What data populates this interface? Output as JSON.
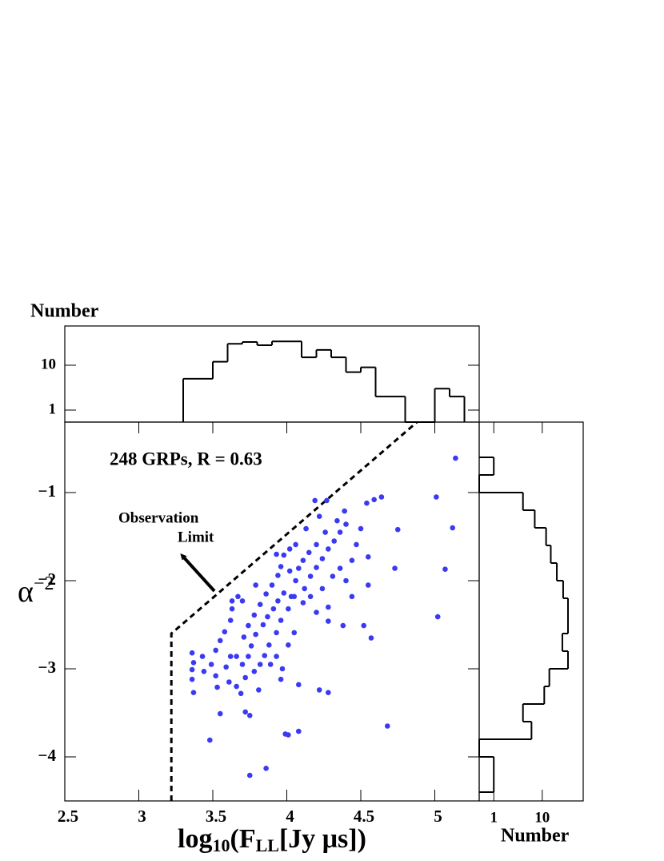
{
  "chart_data": [
    {
      "type": "scatter",
      "annotation": "248 GRPs, R = 0.63",
      "limit_label": [
        "Observation",
        "Limit"
      ],
      "xlabel": [
        {
          "text": "log"
        },
        {
          "text": "10",
          "sub": true
        },
        {
          "text": "(F"
        },
        {
          "text": "LL",
          "sub": true
        },
        {
          "text": "[Jy μs])"
        }
      ],
      "ylabel": [
        {
          "text": "α"
        },
        {
          "text": "−2",
          "sup": true
        }
      ],
      "color": "#3a3af2",
      "xlim": [
        2.5,
        5.3
      ],
      "ylim": [
        -4.5,
        -0.2
      ],
      "xticks": [
        2.5,
        3,
        3.5,
        4,
        4.5,
        5
      ],
      "yticks": [
        {
          "value": -1,
          "label": "−1"
        },
        {
          "value": -2,
          "label": "−2"
        },
        {
          "value": -3,
          "label": "−3"
        },
        {
          "value": -4,
          "label": "−4"
        }
      ],
      "limit_line": {
        "x": [
          3.22,
          3.22,
          4.88
        ],
        "y": [
          -4.5,
          -2.6,
          -0.2
        ]
      },
      "x": [
        5.14,
        5.01,
        5.12,
        5.07,
        5.02,
        4.75,
        4.73,
        4.64,
        4.59,
        4.54,
        4.68,
        4.57,
        4.52,
        4.38,
        4.28,
        4.22,
        4.28,
        4.08,
        4.01,
        3.99,
        3.86,
        3.75,
        3.72,
        3.75,
        3.55,
        3.48,
        3.96,
        4.08,
        3.81,
        3.69,
        3.66,
        3.53,
        3.37,
        3.36,
        3.36,
        3.37,
        3.36,
        3.43,
        3.44,
        3.49,
        3.52,
        3.55,
        3.58,
        3.62,
        3.63,
        3.63,
        3.67,
        3.62,
        3.66,
        3.7,
        3.74,
        3.76,
        3.71,
        3.74,
        3.78,
        3.82,
        3.86,
        3.9,
        3.94,
        3.96,
        3.98,
        4.02,
        4.06,
        4.05,
        4.01,
        3.96,
        3.93,
        3.88,
        3.85,
        3.93,
        3.89,
        3.82,
        3.79,
        3.84,
        3.87,
        3.91,
        3.94,
        3.98,
        4.12,
        4.16,
        4.2,
        4.24,
        4.28,
        4.32,
        4.36,
        4.4,
        4.39,
        4.34,
        4.26,
        4.2,
        4.15,
        4.11,
        4.08,
        4.13,
        4.22,
        4.27,
        4.19,
        4.11,
        4.16,
        4.24,
        4.31,
        4.36,
        4.4,
        4.44,
        4.47,
        4.5,
        4.55,
        4.55,
        4.44,
        3.7,
        3.79,
        3.93,
        4.02,
        4.06,
        4.03,
        4.2,
        4.28,
        3.59,
        3.52,
        3.78,
        3.97,
        4.01,
        4.05,
        3.61,
        3.72
      ],
      "y": [
        -0.61,
        -1.05,
        -1.4,
        -1.87,
        -2.41,
        -1.42,
        -1.86,
        -1.05,
        -1.08,
        -1.12,
        -3.65,
        -2.65,
        -2.51,
        -2.51,
        -3.27,
        -3.24,
        -2.46,
        -3.71,
        -3.75,
        -3.74,
        -4.13,
        -4.21,
        -3.49,
        -3.53,
        -3.51,
        -3.81,
        -3.12,
        -3.18,
        -3.24,
        -3.28,
        -3.2,
        -3.21,
        -3.27,
        -3.12,
        -3.01,
        -2.93,
        -2.82,
        -2.86,
        -3.03,
        -2.95,
        -2.79,
        -2.68,
        -2.58,
        -2.45,
        -2.32,
        -2.23,
        -2.18,
        -2.86,
        -2.86,
        -2.95,
        -2.86,
        -2.74,
        -2.64,
        -2.51,
        -2.39,
        -2.27,
        -2.15,
        -2.05,
        -1.94,
        -1.84,
        -1.71,
        -1.89,
        -2.0,
        -2.18,
        -2.32,
        -2.45,
        -2.59,
        -2.73,
        -2.85,
        -2.86,
        -2.95,
        -2.95,
        -2.61,
        -2.5,
        -2.41,
        -2.32,
        -2.23,
        -2.14,
        -2.09,
        -1.95,
        -1.85,
        -1.75,
        -1.64,
        -1.55,
        -1.45,
        -1.36,
        -1.21,
        -1.32,
        -1.45,
        -1.59,
        -1.68,
        -1.77,
        -1.86,
        -1.41,
        -1.27,
        -1.09,
        -1.09,
        -2.25,
        -2.18,
        -2.09,
        -1.95,
        -1.86,
        -2.0,
        -1.77,
        -1.59,
        -1.41,
        -1.73,
        -2.05,
        -2.18,
        -2.23,
        -2.05,
        -1.7,
        -1.64,
        -1.59,
        -2.18,
        -2.36,
        -2.3,
        -2.98,
        -3.08,
        -3.03,
        -3.0,
        -2.73,
        -2.59,
        -3.15,
        -3.1
      ]
    },
    {
      "type": "histogram",
      "orientation": "vertical",
      "ylabel": "Number",
      "log_scale": true,
      "xlim": [
        2.5,
        5.3
      ],
      "ylim": [
        0.54,
        75
      ],
      "yticks": [
        1,
        10
      ],
      "bins": [
        3.3,
        3.4,
        3.5,
        3.6,
        3.7,
        3.8,
        3.9,
        4.0,
        4.1,
        4.2,
        4.3,
        4.4,
        4.5,
        4.6,
        4.7,
        4.8,
        4.9,
        5.0,
        5.1,
        5.2
      ],
      "counts": [
        5,
        5,
        12,
        30,
        33,
        28,
        34,
        34,
        15,
        22,
        15,
        7,
        9,
        2,
        2,
        0,
        0,
        3,
        2
      ]
    },
    {
      "type": "histogram",
      "orientation": "horizontal",
      "xlabel": "Number",
      "log_scale": true,
      "ylim": [
        -4.5,
        -0.2
      ],
      "xlim": [
        0.5,
        70
      ],
      "xticks": [
        1,
        10
      ],
      "bins": [
        -4.4,
        -4.2,
        -4.0,
        -3.8,
        -3.6,
        -3.4,
        -3.2,
        -3.0,
        -2.8,
        -2.6,
        -2.4,
        -2.2,
        -2.0,
        -1.8,
        -1.6,
        -1.4,
        -1.2,
        -1.0,
        -0.8,
        -0.6
      ],
      "counts": [
        1,
        1,
        0,
        6,
        4,
        11,
        14,
        34,
        26,
        34,
        34,
        27,
        20,
        15,
        12,
        7,
        4,
        0,
        1
      ]
    }
  ]
}
